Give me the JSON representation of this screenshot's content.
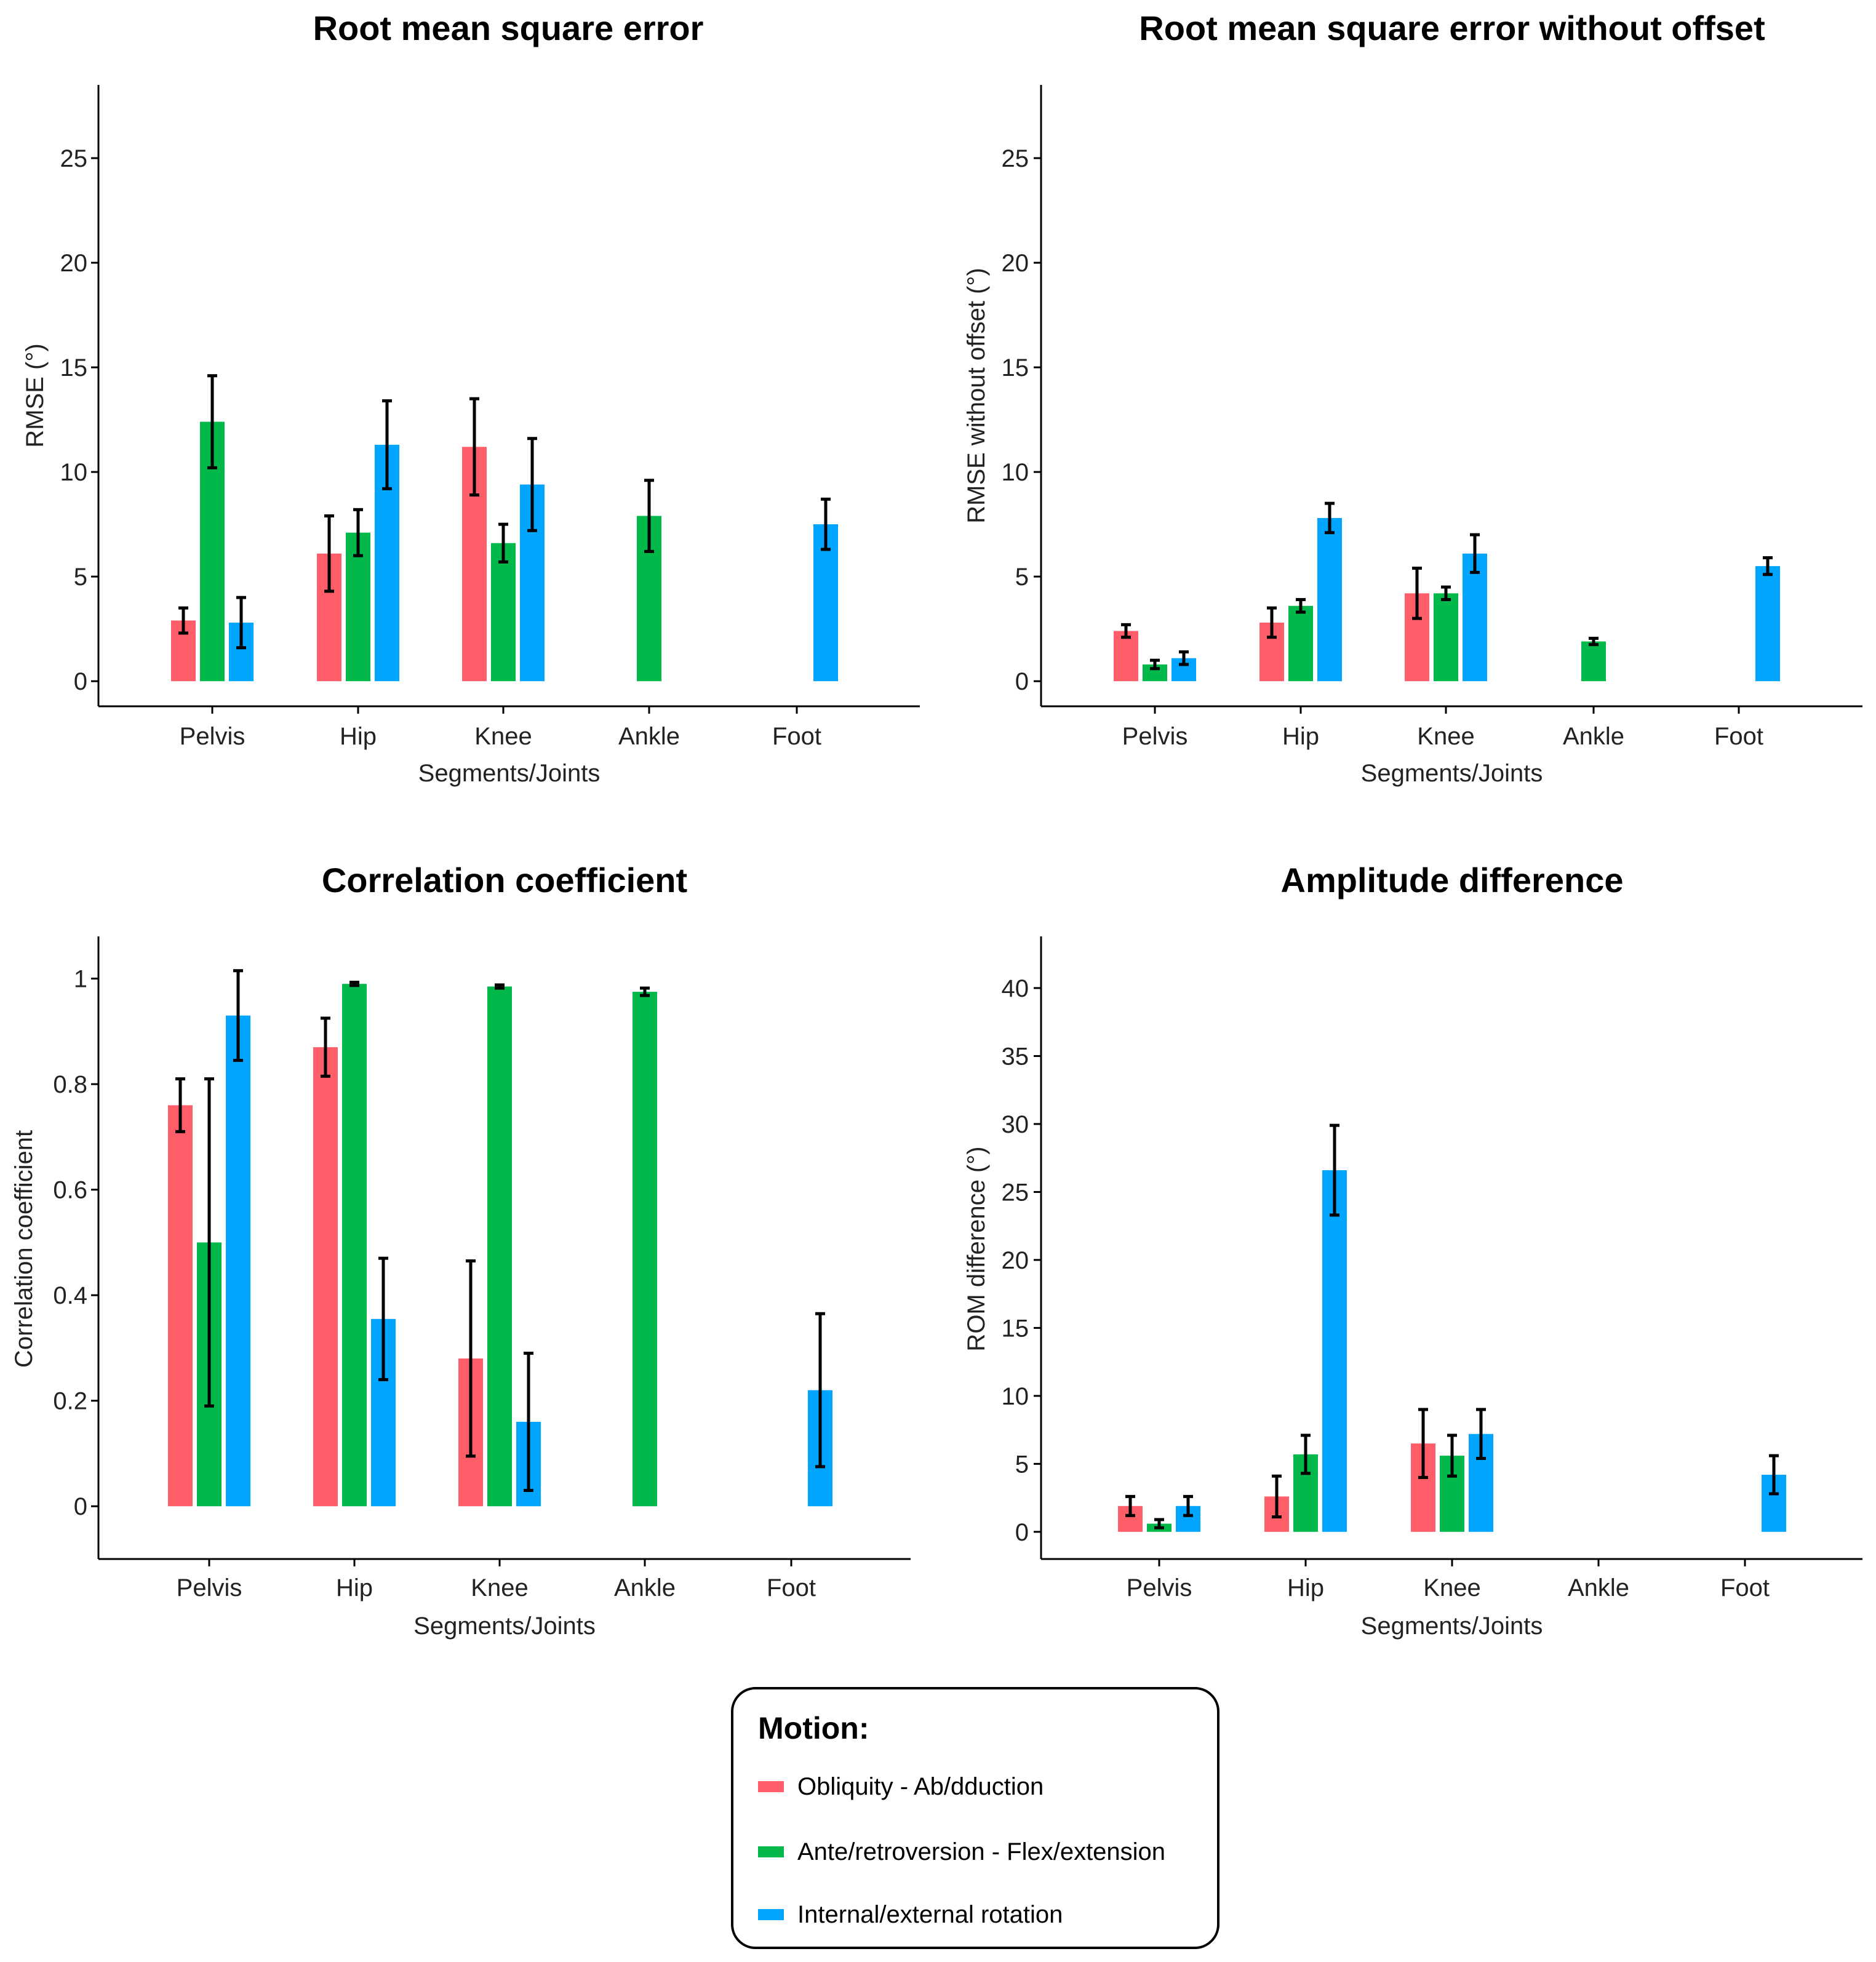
{
  "colors": {
    "obliquity": "#ff5d68",
    "anteversion": "#00b94a",
    "rotation": "#00a5ff",
    "axis": "#000000",
    "error": "#000000"
  },
  "legend": {
    "title": "Motion:",
    "items": [
      {
        "label": "Obliquity - Ab/dduction",
        "color": "#ff5d68"
      },
      {
        "label": "Ante/retroversion - Flex/extension",
        "color": "#00b94a"
      },
      {
        "label": "Internal/external rotation",
        "color": "#00a5ff"
      }
    ]
  },
  "chart_data": [
    {
      "type": "bar",
      "title": "Root mean square error",
      "xlabel": "Segments/Joints",
      "ylabel": "RMSE (°)",
      "categories": [
        "Pelvis",
        "Hip",
        "Knee",
        "Ankle",
        "Foot"
      ],
      "ylim": [
        -1.2,
        28.5
      ],
      "yticks": [
        0,
        5,
        10,
        15,
        20,
        25
      ],
      "series": [
        {
          "key": "obliquity",
          "values": [
            2.9,
            6.1,
            11.2,
            null,
            null
          ],
          "err": [
            0.6,
            1.8,
            2.3,
            null,
            null
          ]
        },
        {
          "key": "anteversion",
          "values": [
            12.4,
            7.1,
            6.6,
            7.9,
            null
          ],
          "err": [
            2.2,
            1.1,
            0.9,
            1.7,
            null
          ]
        },
        {
          "key": "rotation",
          "values": [
            2.8,
            11.3,
            9.4,
            null,
            7.5
          ],
          "err": [
            1.2,
            2.1,
            2.2,
            null,
            1.2
          ]
        }
      ]
    },
    {
      "type": "bar",
      "title": "Root mean square error without offset",
      "xlabel": "Segments/Joints",
      "ylabel": "RMSE without offset (°)",
      "categories": [
        "Pelvis",
        "Hip",
        "Knee",
        "Ankle",
        "Foot"
      ],
      "ylim": [
        -1.2,
        28.5
      ],
      "yticks": [
        0,
        5,
        10,
        15,
        20,
        25
      ],
      "series": [
        {
          "key": "obliquity",
          "values": [
            2.4,
            2.8,
            4.2,
            null,
            null
          ],
          "err": [
            0.3,
            0.7,
            1.2,
            null,
            null
          ]
        },
        {
          "key": "anteversion",
          "values": [
            0.8,
            3.6,
            4.2,
            1.9,
            null
          ],
          "err": [
            0.2,
            0.3,
            0.3,
            0.15,
            null
          ]
        },
        {
          "key": "rotation",
          "values": [
            1.1,
            7.8,
            6.1,
            null,
            5.5
          ],
          "err": [
            0.3,
            0.7,
            0.9,
            null,
            0.4
          ]
        }
      ]
    },
    {
      "type": "bar",
      "title": "Correlation coefficient",
      "xlabel": "Segments/Joints",
      "ylabel": "Correlation coefficient",
      "categories": [
        "Pelvis",
        "Hip",
        "Knee",
        "Ankle",
        "Foot"
      ],
      "ylim": [
        -0.1,
        1.08
      ],
      "yticks": [
        0,
        0.2,
        0.4,
        0.6,
        0.8,
        1
      ],
      "series": [
        {
          "key": "obliquity",
          "values": [
            0.76,
            0.87,
            0.28,
            null,
            null
          ],
          "err": [
            0.05,
            0.055,
            0.185,
            null,
            null
          ]
        },
        {
          "key": "anteversion",
          "values": [
            0.5,
            0.99,
            0.985,
            0.975,
            null
          ],
          "err": [
            0.31,
            0.003,
            0.003,
            0.007,
            null
          ]
        },
        {
          "key": "rotation",
          "values": [
            0.93,
            0.355,
            0.16,
            null,
            0.22
          ],
          "err": [
            0.085,
            0.115,
            0.13,
            null,
            0.145
          ]
        }
      ]
    },
    {
      "type": "bar",
      "title": "Amplitude difference",
      "xlabel": "Segments/Joints",
      "ylabel": "ROM difference (°)",
      "categories": [
        "Pelvis",
        "Hip",
        "Knee",
        "Ankle",
        "Foot"
      ],
      "ylim": [
        -2,
        43.8
      ],
      "yticks": [
        0,
        5,
        10,
        15,
        20,
        25,
        30,
        35,
        40
      ],
      "series": [
        {
          "key": "obliquity",
          "values": [
            1.9,
            2.6,
            6.5,
            null,
            null
          ],
          "err": [
            0.7,
            1.5,
            2.5,
            null,
            null
          ]
        },
        {
          "key": "anteversion",
          "values": [
            0.6,
            5.7,
            5.6,
            null,
            null
          ],
          "err": [
            0.3,
            1.4,
            1.5,
            null,
            null
          ]
        },
        {
          "key": "rotation",
          "values": [
            1.9,
            26.6,
            7.2,
            null,
            4.2
          ],
          "err": [
            0.7,
            3.3,
            1.8,
            null,
            1.4
          ]
        }
      ]
    }
  ]
}
